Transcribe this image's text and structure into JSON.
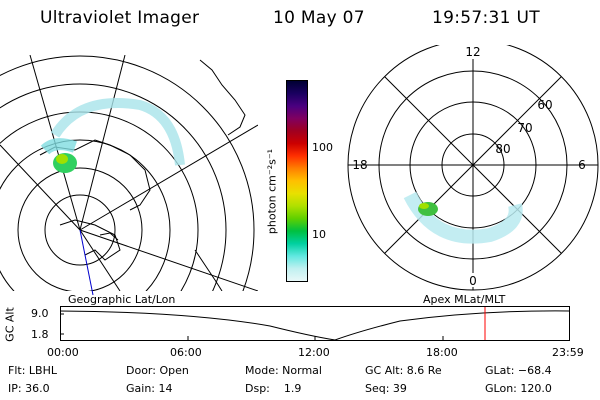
{
  "header": {
    "instrument": "Ultraviolet Imager",
    "date": "10 May 07",
    "time": "19:57:31 UT"
  },
  "left_map": {
    "caption": "Geographic Lat/Lon"
  },
  "right_map": {
    "caption": "Apex MLat/MLT",
    "mlt_labels": {
      "top": "12",
      "bottom": "0",
      "left": "18",
      "right": "6"
    },
    "lat_labels": [
      "60",
      "70",
      "80"
    ]
  },
  "colorbar": {
    "unit_label": "photon cm⁻²s⁻¹",
    "ticks": [
      "100",
      "10"
    ],
    "colors": [
      "#000033",
      "#1a0060",
      "#4a0080",
      "#800060",
      "#a00020",
      "#cc0000",
      "#ff3000",
      "#ff8000",
      "#ffc000",
      "#e8e000",
      "#b0e000",
      "#60d000",
      "#00c040",
      "#00d0a0",
      "#60e8e0",
      "#c0f0f0",
      "#e8f8f8"
    ]
  },
  "timeline": {
    "y_axis_label": "GC Alt",
    "y_ticks": [
      "9.0",
      "1.8"
    ],
    "x_ticks": [
      "00:00",
      "06:00",
      "12:00",
      "18:00",
      "23:59"
    ],
    "current_marker_color": "#ff0000"
  },
  "status": {
    "row1": [
      {
        "key": "flt",
        "text": "Flt: LBHL"
      },
      {
        "key": "door",
        "text": "Door: Open"
      },
      {
        "key": "mode",
        "text": "Mode: Normal"
      },
      {
        "key": "gcalt",
        "text": "GC Alt: 8.6 Re"
      },
      {
        "key": "glat",
        "text": "GLat: −68.4"
      }
    ],
    "row2": [
      {
        "key": "ip",
        "text": "IP: 36.0"
      },
      {
        "key": "gain",
        "text": "Gain: 14"
      },
      {
        "key": "dsp",
        "text": "Dsp:    1.9"
      },
      {
        "key": "seq",
        "text": "Seq: 39"
      },
      {
        "key": "glon",
        "text": "GLon: 120.0"
      }
    ]
  }
}
